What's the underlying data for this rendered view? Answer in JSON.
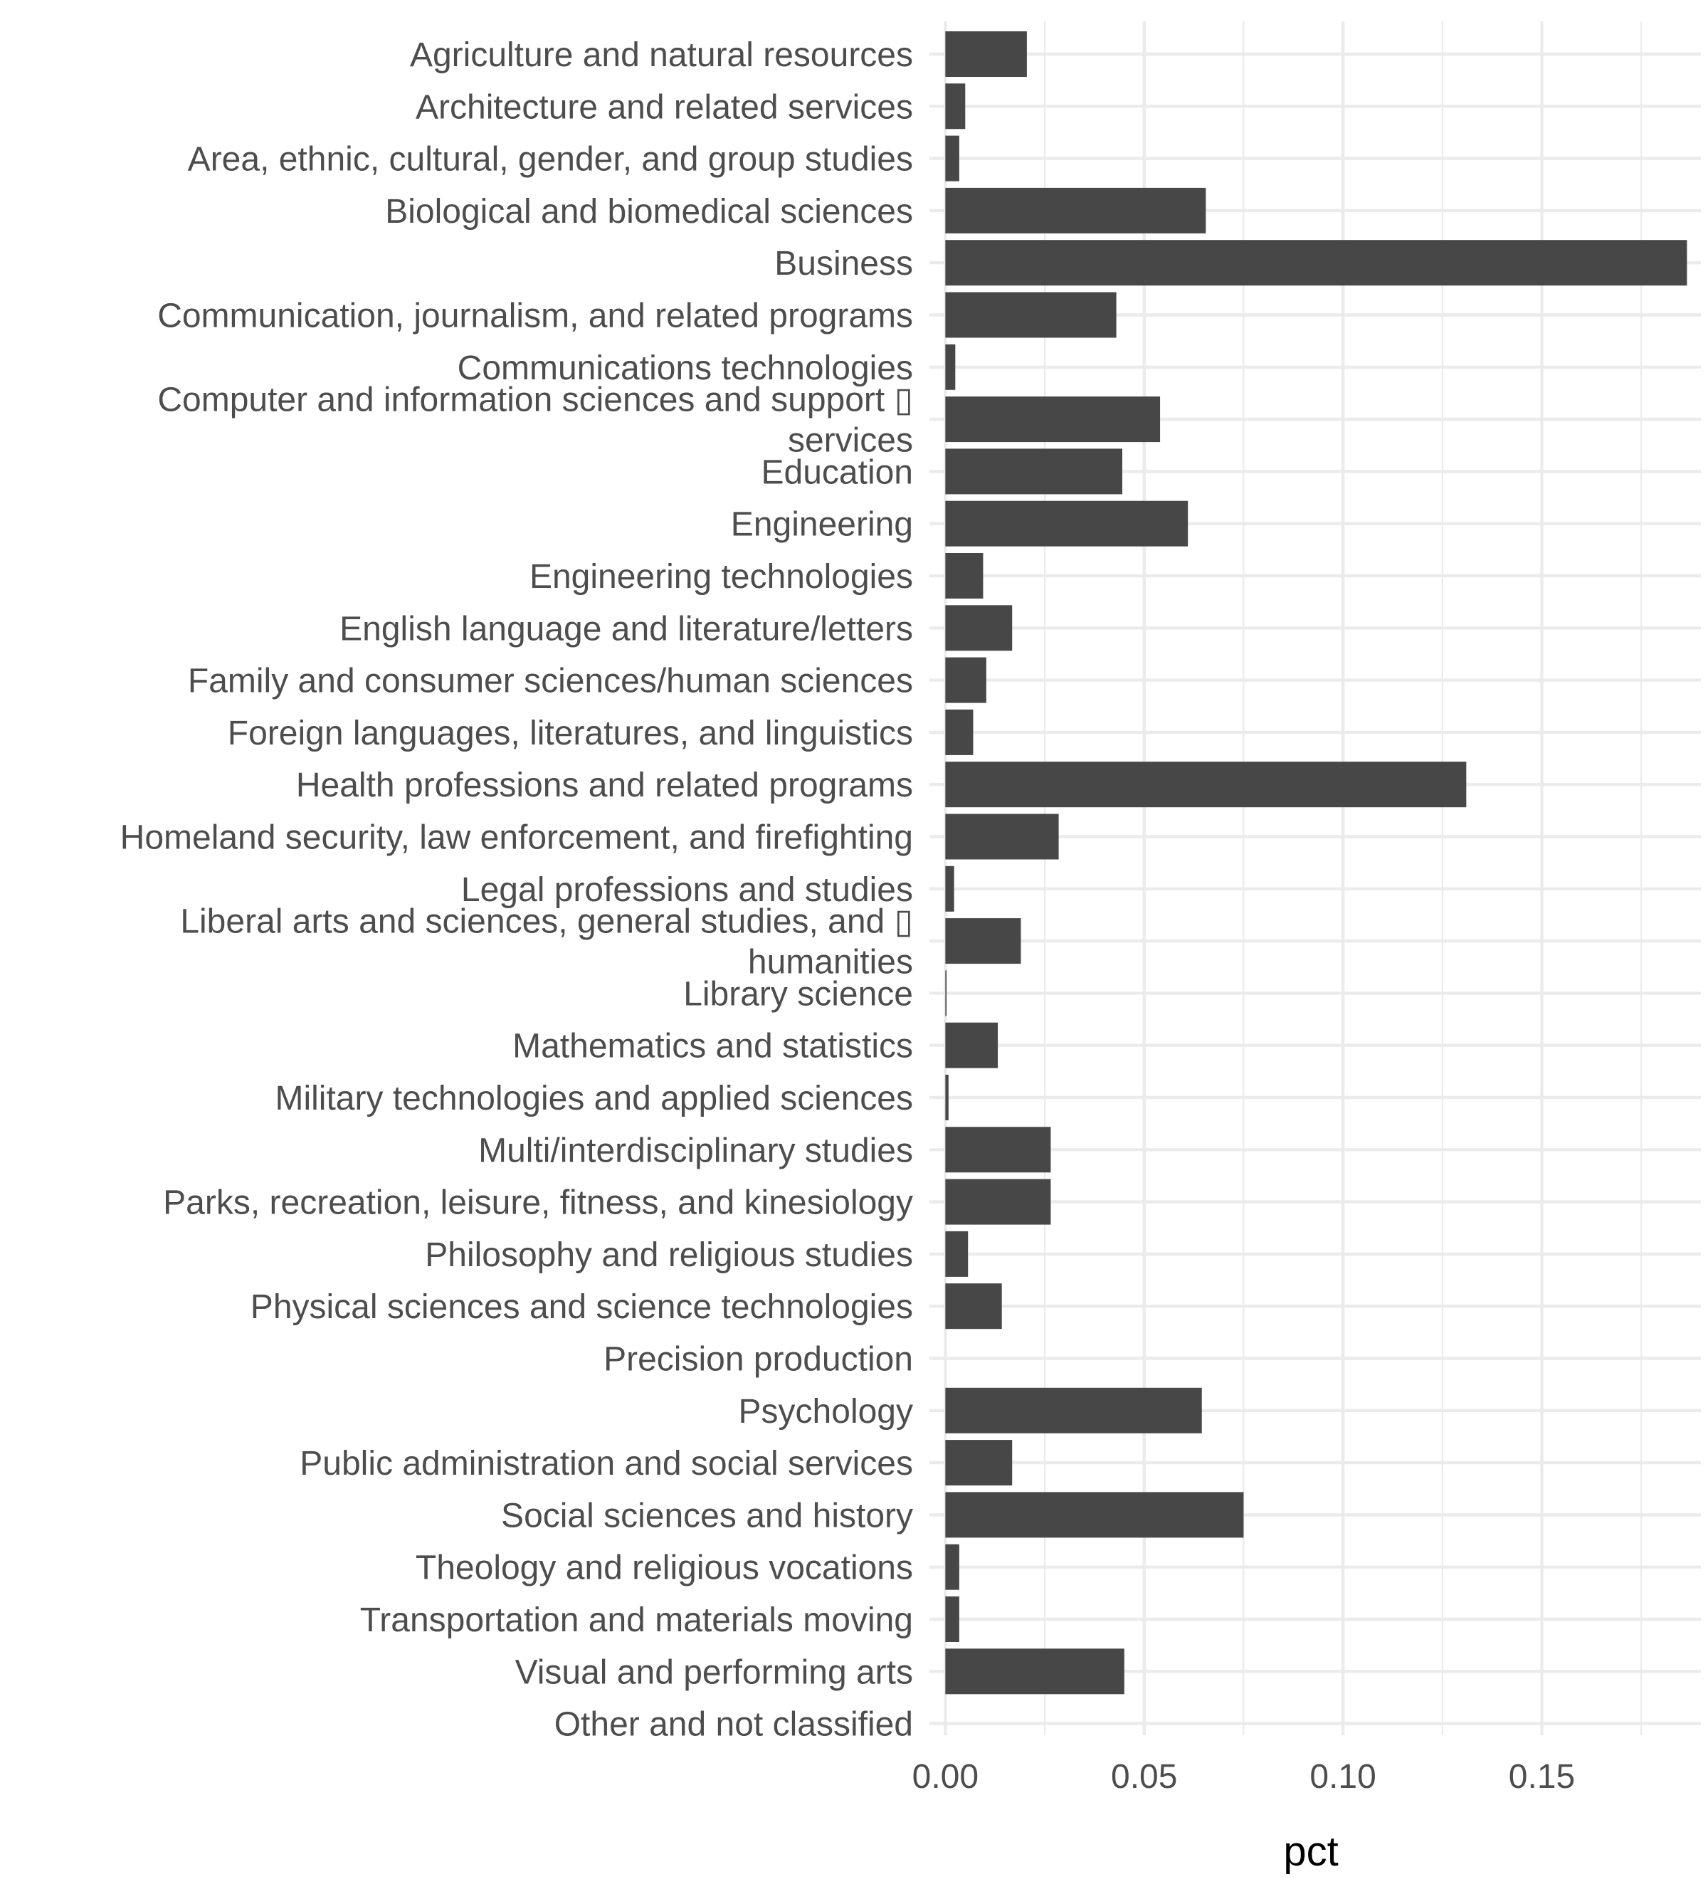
{
  "chart_data": {
    "type": "bar",
    "orientation": "horizontal",
    "xlabel": "pct",
    "ylabel": "",
    "xlim": [
      -0.004,
      0.19
    ],
    "grid": true,
    "x_ticks": [
      {
        "value": 0.0,
        "label": "0.00"
      },
      {
        "value": 0.05,
        "label": "0.05"
      },
      {
        "value": 0.1,
        "label": "0.10"
      },
      {
        "value": 0.15,
        "label": "0.15"
      }
    ],
    "x_minor_ticks": [
      0.025,
      0.075,
      0.125,
      0.175
    ],
    "categories": [
      [
        "Agriculture and natural resources"
      ],
      [
        "Architecture and related services"
      ],
      [
        "Area, ethnic, cultural, gender, and group studies"
      ],
      [
        "Biological and biomedical sciences"
      ],
      [
        "Business"
      ],
      [
        "Communication, journalism, and related programs"
      ],
      [
        "Communications technologies"
      ],
      [
        "Computer and information sciences and support ▯",
        "services"
      ],
      [
        "Education"
      ],
      [
        "Engineering"
      ],
      [
        "Engineering technologies"
      ],
      [
        "English language and literature/letters"
      ],
      [
        "Family and consumer sciences/human sciences"
      ],
      [
        "Foreign languages, literatures, and linguistics"
      ],
      [
        "Health professions and related programs"
      ],
      [
        "Homeland security, law enforcement, and firefighting"
      ],
      [
        "Legal professions and studies"
      ],
      [
        "Liberal arts and sciences, general studies, and ▯",
        "humanities"
      ],
      [
        "Library science"
      ],
      [
        "Mathematics and statistics"
      ],
      [
        "Military technologies and applied sciences"
      ],
      [
        "Multi/interdisciplinary studies"
      ],
      [
        "Parks, recreation, leisure, fitness, and kinesiology"
      ],
      [
        "Philosophy and religious studies"
      ],
      [
        "Physical sciences and science technologies"
      ],
      [
        "Precision production"
      ],
      [
        "Psychology"
      ],
      [
        "Public administration and social services"
      ],
      [
        "Social sciences and history"
      ],
      [
        "Theology and religious vocations"
      ],
      [
        "Transportation and materials moving"
      ],
      [
        "Visual and performing arts"
      ],
      [
        "Other and not classified"
      ]
    ],
    "values": [
      0.0205,
      0.005,
      0.0035,
      0.0655,
      0.1865,
      0.043,
      0.0025,
      0.054,
      0.0445,
      0.061,
      0.0095,
      0.0168,
      0.0103,
      0.007,
      0.131,
      0.0285,
      0.0022,
      0.019,
      0.0003,
      0.0132,
      0.0008,
      0.0265,
      0.0265,
      0.0057,
      0.0142,
      0.0,
      0.0645,
      0.0168,
      0.075,
      0.0035,
      0.0035,
      0.045,
      0.0
    ],
    "bar_color": "#474747",
    "grid_color": "#ebebeb"
  }
}
